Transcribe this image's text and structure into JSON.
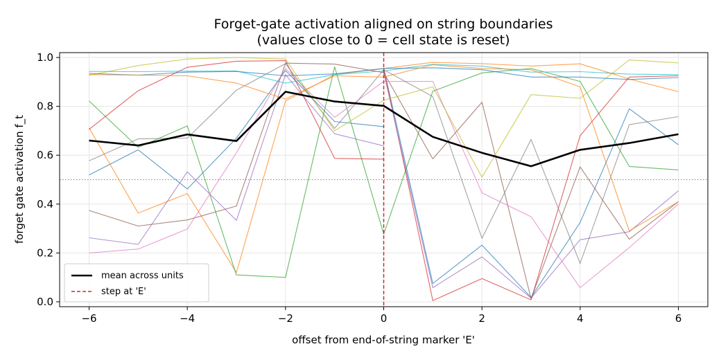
{
  "chart_data": {
    "type": "line",
    "title": "Forget-gate activation aligned on string boundaries",
    "subtitle": "(values close to 0 = cell state is reset)",
    "xlabel": "offset from end-of-string marker 'E'",
    "ylabel": "forget gate activation f_t",
    "xlim": [
      -6.6,
      6.6
    ],
    "ylim": [
      -0.02,
      1.02
    ],
    "xticks": [
      -6,
      -4,
      -2,
      0,
      2,
      4,
      6
    ],
    "xtick_labels": [
      "−6",
      "−4",
      "−2",
      "0",
      "2",
      "4",
      "6"
    ],
    "yticks": [
      0.0,
      0.2,
      0.4,
      0.6,
      0.8,
      1.0
    ],
    "ytick_labels": [
      "0.0",
      "0.2",
      "0.4",
      "0.6",
      "0.8",
      "1.0"
    ],
    "grid": true,
    "legend_position": "bottom-left",
    "reference_hline": 0.5,
    "vline": 0,
    "left_x": [
      -6,
      -5,
      -4,
      -3,
      -2,
      -1,
      0
    ],
    "right_x": [
      0,
      1,
      2,
      3,
      4,
      5,
      6
    ],
    "mean_x": [
      -6,
      -5,
      -4,
      -3,
      -2,
      -1,
      0,
      1,
      2,
      3,
      4,
      5,
      6
    ],
    "mean": {
      "name": "mean across units",
      "color": "#000000",
      "values": [
        0.66,
        0.64,
        0.685,
        0.658,
        0.86,
        0.82,
        0.802,
        0.675,
        0.61,
        0.555,
        0.622,
        0.65,
        0.686
      ]
    },
    "vline_series": {
      "name": "step at 'E'",
      "color": "#d62728"
    },
    "units": [
      {
        "color": "#1f77b4",
        "left": [
          0.519,
          0.622,
          0.462,
          0.67,
          0.947,
          0.738,
          0.717
        ],
        "right": [
          0.955,
          0.075,
          0.232,
          0.018,
          0.325,
          0.79,
          0.643
        ]
      },
      {
        "color": "#ff7f0e",
        "left": [
          0.712,
          0.363,
          0.443,
          0.12,
          0.822,
          0.93,
          0.955
        ],
        "right": [
          0.955,
          0.98,
          0.975,
          0.965,
          0.974,
          0.912,
          0.86
        ]
      },
      {
        "color": "#2ca02c",
        "left": [
          0.822,
          0.632,
          0.72,
          0.11,
          0.1,
          0.962,
          0.277
        ],
        "right": [
          0.277,
          0.862,
          0.937,
          0.955,
          0.902,
          0.554,
          0.54
        ]
      },
      {
        "color": "#d62728",
        "left": [
          0.706,
          0.864,
          0.96,
          0.985,
          0.987,
          0.587,
          0.584
        ],
        "right": [
          0.955,
          0.005,
          0.095,
          0.008,
          0.68,
          0.92,
          0.925
        ]
      },
      {
        "color": "#9467bd",
        "left": [
          0.262,
          0.235,
          0.532,
          0.333,
          0.93,
          0.688,
          0.638
        ],
        "right": [
          0.938,
          0.058,
          0.184,
          0.015,
          0.254,
          0.287,
          0.454
        ]
      },
      {
        "color": "#8c564b",
        "left": [
          0.374,
          0.31,
          0.335,
          0.392,
          0.977,
          0.973,
          0.938
        ],
        "right": [
          0.938,
          0.585,
          0.817,
          0.013,
          0.552,
          0.256,
          0.41
        ]
      },
      {
        "color": "#e377c2",
        "left": [
          0.2,
          0.216,
          0.298,
          0.61,
          0.955,
          0.755,
          0.902
        ],
        "right": [
          0.902,
          0.902,
          0.446,
          0.348,
          0.058,
          0.222,
          0.4
        ]
      },
      {
        "color": "#7f7f7f",
        "left": [
          0.577,
          0.667,
          0.67,
          0.866,
          0.975,
          0.71,
          0.95
        ],
        "right": [
          0.95,
          0.84,
          0.26,
          0.665,
          0.157,
          0.725,
          0.758
        ]
      },
      {
        "color": "#bcbd22",
        "left": [
          0.927,
          0.967,
          0.994,
          1.0,
          0.994,
          0.7,
          0.825
        ],
        "right": [
          0.825,
          0.88,
          0.51,
          0.848,
          0.833,
          0.99,
          0.978
        ]
      },
      {
        "color": "#17becf",
        "left": [
          0.943,
          0.942,
          0.944,
          0.945,
          0.895,
          0.93,
          0.945
        ],
        "right": [
          0.945,
          0.972,
          0.965,
          0.94,
          0.942,
          0.932,
          0.93
        ]
      },
      {
        "color": "#1f77b4",
        "left": [
          0.935,
          0.928,
          0.94,
          0.943,
          0.925,
          0.933,
          0.955
        ],
        "right": [
          0.955,
          0.958,
          0.95,
          0.92,
          0.92,
          0.91,
          0.918
        ]
      },
      {
        "color": "#ff7f0e",
        "left": [
          0.93,
          0.928,
          0.925,
          0.895,
          0.83,
          0.925,
          0.92
        ],
        "right": [
          0.92,
          0.97,
          0.955,
          0.95,
          0.88,
          0.29,
          0.41
        ]
      }
    ]
  }
}
